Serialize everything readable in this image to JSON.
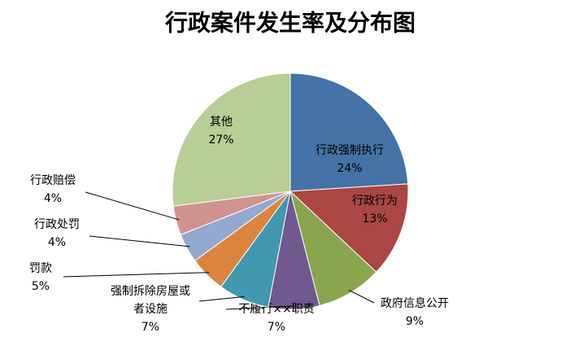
{
  "chart_data": {
    "type": "pie",
    "title": "行政案件发生率及分布图",
    "slices": [
      {
        "label": [
          "行政强制执行"
        ],
        "value": 24,
        "value_label": "24%",
        "color": "#4572a7"
      },
      {
        "label": [
          "行政行为"
        ],
        "value": 13,
        "value_label": "13%",
        "color": "#aa4643"
      },
      {
        "label": [
          "政府信息公开"
        ],
        "value": 9,
        "value_label": "9%",
        "color": "#89a54e"
      },
      {
        "label": [
          "不履行××职责"
        ],
        "value": 7,
        "value_label": "7%",
        "color": "#71588f"
      },
      {
        "label": [
          "强制拆除房屋或",
          "者设施"
        ],
        "value": 7,
        "value_label": "7%",
        "color": "#4198af"
      },
      {
        "label": [
          "罚款"
        ],
        "value": 5,
        "value_label": "5%",
        "color": "#db843d"
      },
      {
        "label": [
          "行政处罚"
        ],
        "value": 4,
        "value_label": "4%",
        "color": "#93a9cf"
      },
      {
        "label": [
          "行政赔偿"
        ],
        "value": 4,
        "value_label": "4%",
        "color": "#d19392"
      },
      {
        "label": [
          "其他"
        ],
        "value": 27,
        "value_label": "27%",
        "color": "#b9cd96"
      }
    ]
  }
}
